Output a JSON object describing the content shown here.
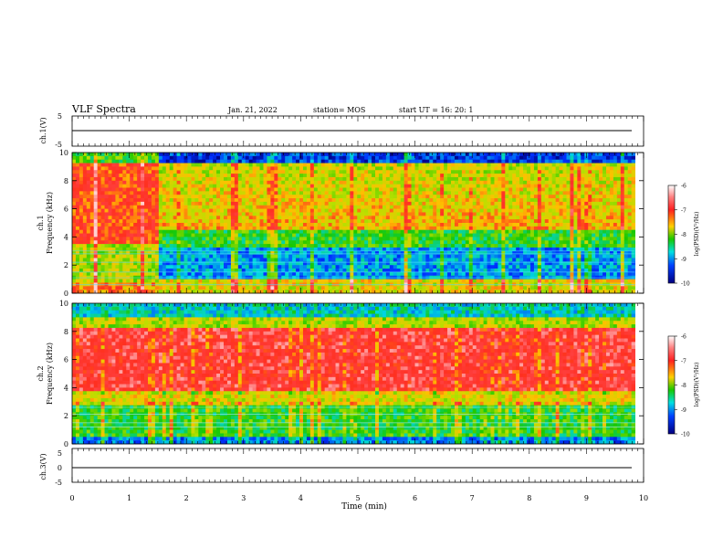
{
  "header": {
    "title": "VLF Spectra",
    "date": "Jan. 21, 2022",
    "station": "station= MOS",
    "start": "start  UT =   16: 20: 1"
  },
  "colorbar": {
    "label": "log(PSD)(V²/Hz)",
    "ticks": [
      "-6",
      "-7",
      "-8",
      "-9",
      "-10"
    ],
    "colors": [
      "#ffffff",
      "#ff2020",
      "#ffd000",
      "#19c800",
      "#00e0e0",
      "#0040ff",
      "#000080"
    ]
  },
  "chart_data": [
    {
      "type": "line",
      "panel": "ch1-waveform",
      "ylabel": "ch.1(V)",
      "ylim": [
        -5,
        5
      ],
      "yticks": [
        "5",
        "-5"
      ],
      "xlim": [
        0,
        10
      ],
      "series": [
        {
          "x": [
            0,
            9.85
          ],
          "y": [
            0,
            0
          ]
        }
      ]
    },
    {
      "type": "heatmap",
      "panel": "ch1-spectrogram",
      "ylabel": [
        "ch.1",
        "Frequency (kHz)"
      ],
      "ylim": [
        0,
        10
      ],
      "yticks": [
        "10",
        "8",
        "6",
        "4",
        "2",
        "0"
      ],
      "xlim": [
        0,
        10
      ],
      "data_end_min": 9.85,
      "zlim": [
        -10,
        -6
      ]
    },
    {
      "type": "heatmap",
      "panel": "ch2-spectrogram",
      "ylabel": [
        "ch.2",
        "Frequency (kHz)"
      ],
      "ylim": [
        0,
        10
      ],
      "yticks": [
        "10",
        "8",
        "6",
        "4",
        "2",
        "0"
      ],
      "xlim": [
        0,
        10
      ],
      "data_end_min": 9.85,
      "zlim": [
        -10,
        -6
      ]
    },
    {
      "type": "line",
      "panel": "ch3-waveform",
      "ylabel": "ch.3(V)",
      "ylim": [
        -5,
        5
      ],
      "yticks": [
        "5",
        "0",
        "-5"
      ],
      "xlim": [
        0,
        10
      ],
      "xlabel": "Time (min)",
      "xticks": [
        "0",
        "1",
        "2",
        "3",
        "4",
        "5",
        "6",
        "7",
        "8",
        "9",
        "10"
      ],
      "series": [
        {
          "x": [
            0,
            9.85
          ],
          "y": [
            0,
            0
          ]
        }
      ]
    }
  ]
}
